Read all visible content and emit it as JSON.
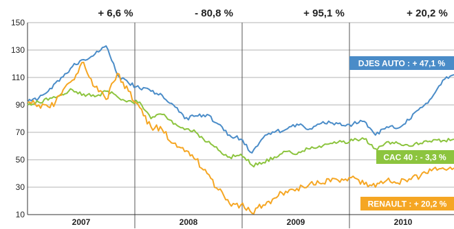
{
  "chart_data": {
    "type": "line",
    "title": "",
    "xlabel": "",
    "ylabel": "",
    "ylim": [
      10,
      150
    ],
    "yticks": [
      10,
      30,
      50,
      70,
      90,
      110,
      130,
      150
    ],
    "xlim": [
      2007.0,
      2010.8
    ],
    "years": [
      "2007",
      "2008",
      "2009",
      "2010"
    ],
    "year_changes": [
      "+ 6,6 %",
      "- 80,8 %",
      "+ 95,1 %",
      "+ 20,2 %"
    ],
    "grid": true,
    "legend": "inline labels at right end of each series",
    "series": [
      {
        "name": "DJES AUTO",
        "label": "DJES AUTO : + 47,1 %",
        "color": "#4a8cc8",
        "x": [
          2007.0,
          2007.1,
          2007.2,
          2007.3,
          2007.4,
          2007.5,
          2007.6,
          2007.7,
          2007.8,
          2007.9,
          2008.0,
          2008.1,
          2008.2,
          2008.3,
          2008.4,
          2008.5,
          2008.6,
          2008.7,
          2008.8,
          2008.9,
          2009.0,
          2009.1,
          2009.2,
          2009.3,
          2009.4,
          2009.5,
          2009.6,
          2009.7,
          2009.8,
          2009.9,
          2010.0,
          2010.1,
          2010.2,
          2010.3,
          2010.4,
          2010.5,
          2010.6,
          2010.7,
          2010.8
        ],
        "y": [
          92,
          95,
          102,
          110,
          118,
          123,
          127,
          133,
          112,
          106,
          102,
          100,
          97,
          90,
          80,
          82,
          83,
          76,
          68,
          65,
          55,
          66,
          70,
          72,
          76,
          72,
          76,
          77,
          75,
          76,
          78,
          68,
          74,
          73,
          79,
          88,
          95,
          108,
          112
        ]
      },
      {
        "name": "CAC 40",
        "label": "CAC 40 : - 3,3 %",
        "color": "#8cc43e",
        "x": [
          2007.0,
          2007.1,
          2007.2,
          2007.3,
          2007.4,
          2007.5,
          2007.6,
          2007.7,
          2007.8,
          2007.9,
          2008.0,
          2008.1,
          2008.2,
          2008.3,
          2008.4,
          2008.5,
          2008.6,
          2008.7,
          2008.8,
          2008.9,
          2009.0,
          2009.1,
          2009.2,
          2009.3,
          2009.4,
          2009.5,
          2009.6,
          2009.7,
          2009.8,
          2009.9,
          2010.0,
          2010.1,
          2010.2,
          2010.3,
          2010.4,
          2010.5,
          2010.6,
          2010.7,
          2010.8
        ],
        "y": [
          90,
          92,
          95,
          98,
          101,
          98,
          96,
          100,
          96,
          93,
          92,
          80,
          83,
          76,
          72,
          70,
          63,
          57,
          52,
          54,
          46,
          48,
          52,
          56,
          54,
          58,
          60,
          62,
          63,
          64,
          65,
          58,
          63,
          62,
          60,
          62,
          63,
          64,
          65
        ]
      },
      {
        "name": "RENAULT",
        "label": "RENAULT : + 20,2 %",
        "color": "#f5a623",
        "x": [
          2007.0,
          2007.1,
          2007.2,
          2007.3,
          2007.4,
          2007.5,
          2007.6,
          2007.7,
          2007.8,
          2007.9,
          2008.0,
          2008.1,
          2008.2,
          2008.3,
          2008.4,
          2008.5,
          2008.6,
          2008.7,
          2008.8,
          2008.9,
          2009.0,
          2009.1,
          2009.2,
          2009.3,
          2009.4,
          2009.5,
          2009.6,
          2009.7,
          2009.8,
          2009.9,
          2010.0,
          2010.1,
          2010.2,
          2010.3,
          2010.4,
          2010.5,
          2010.6,
          2010.7,
          2010.8
        ],
        "y": [
          92,
          90,
          88,
          97,
          108,
          121,
          103,
          94,
          113,
          100,
          88,
          74,
          72,
          62,
          56,
          50,
          40,
          28,
          18,
          17,
          11,
          17,
          22,
          27,
          29,
          31,
          33,
          34,
          36,
          38,
          32,
          30,
          35,
          33,
          36,
          38,
          42,
          44,
          44
        ]
      }
    ]
  }
}
